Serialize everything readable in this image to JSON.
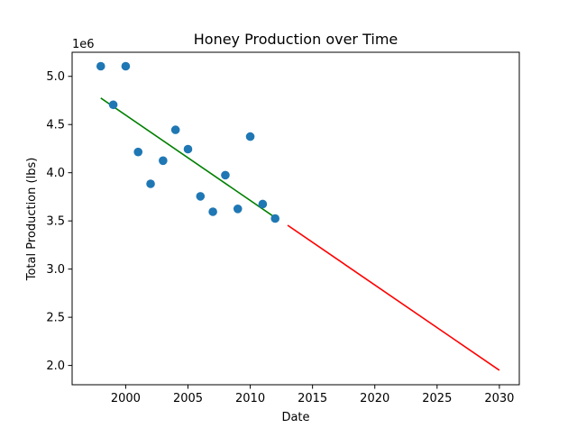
{
  "chart_data": {
    "type": "scatter",
    "title": "Honey Production over Time",
    "xlabel": "Date",
    "ylabel": "Total Production (lbs)",
    "y_offset_label": "1e6",
    "xlim": [
      1995.7,
      2031.6
    ],
    "ylim": [
      1.8,
      5.25
    ],
    "x_ticks": [
      2000,
      2005,
      2010,
      2015,
      2020,
      2025,
      2030
    ],
    "x_tick_labels": [
      "2000",
      "2005",
      "2010",
      "2015",
      "2020",
      "2025",
      "2030"
    ],
    "y_ticks": [
      2.0,
      2.5,
      3.0,
      3.5,
      4.0,
      4.5,
      5.0
    ],
    "y_tick_labels": [
      "2.0",
      "2.5",
      "3.0",
      "3.5",
      "4.0",
      "4.5",
      "5.0"
    ],
    "grid": false,
    "points": {
      "color": "#1f77b4",
      "x": [
        1998,
        1999,
        2000,
        2001,
        2002,
        2003,
        2004,
        2005,
        2006,
        2007,
        2008,
        2009,
        2010,
        2011,
        2012
      ],
      "y": [
        5.105,
        4.705,
        5.105,
        4.215,
        3.885,
        4.125,
        4.445,
        4.245,
        3.755,
        3.595,
        3.975,
        3.625,
        4.375,
        3.675,
        3.525
      ]
    },
    "lines": [
      {
        "color": "#008000",
        "x": [
          1998,
          2012
        ],
        "y": [
          4.775,
          3.535
        ]
      },
      {
        "color": "#ff0000",
        "x": [
          2013,
          2030
        ],
        "y": [
          3.455,
          1.95
        ]
      }
    ]
  }
}
